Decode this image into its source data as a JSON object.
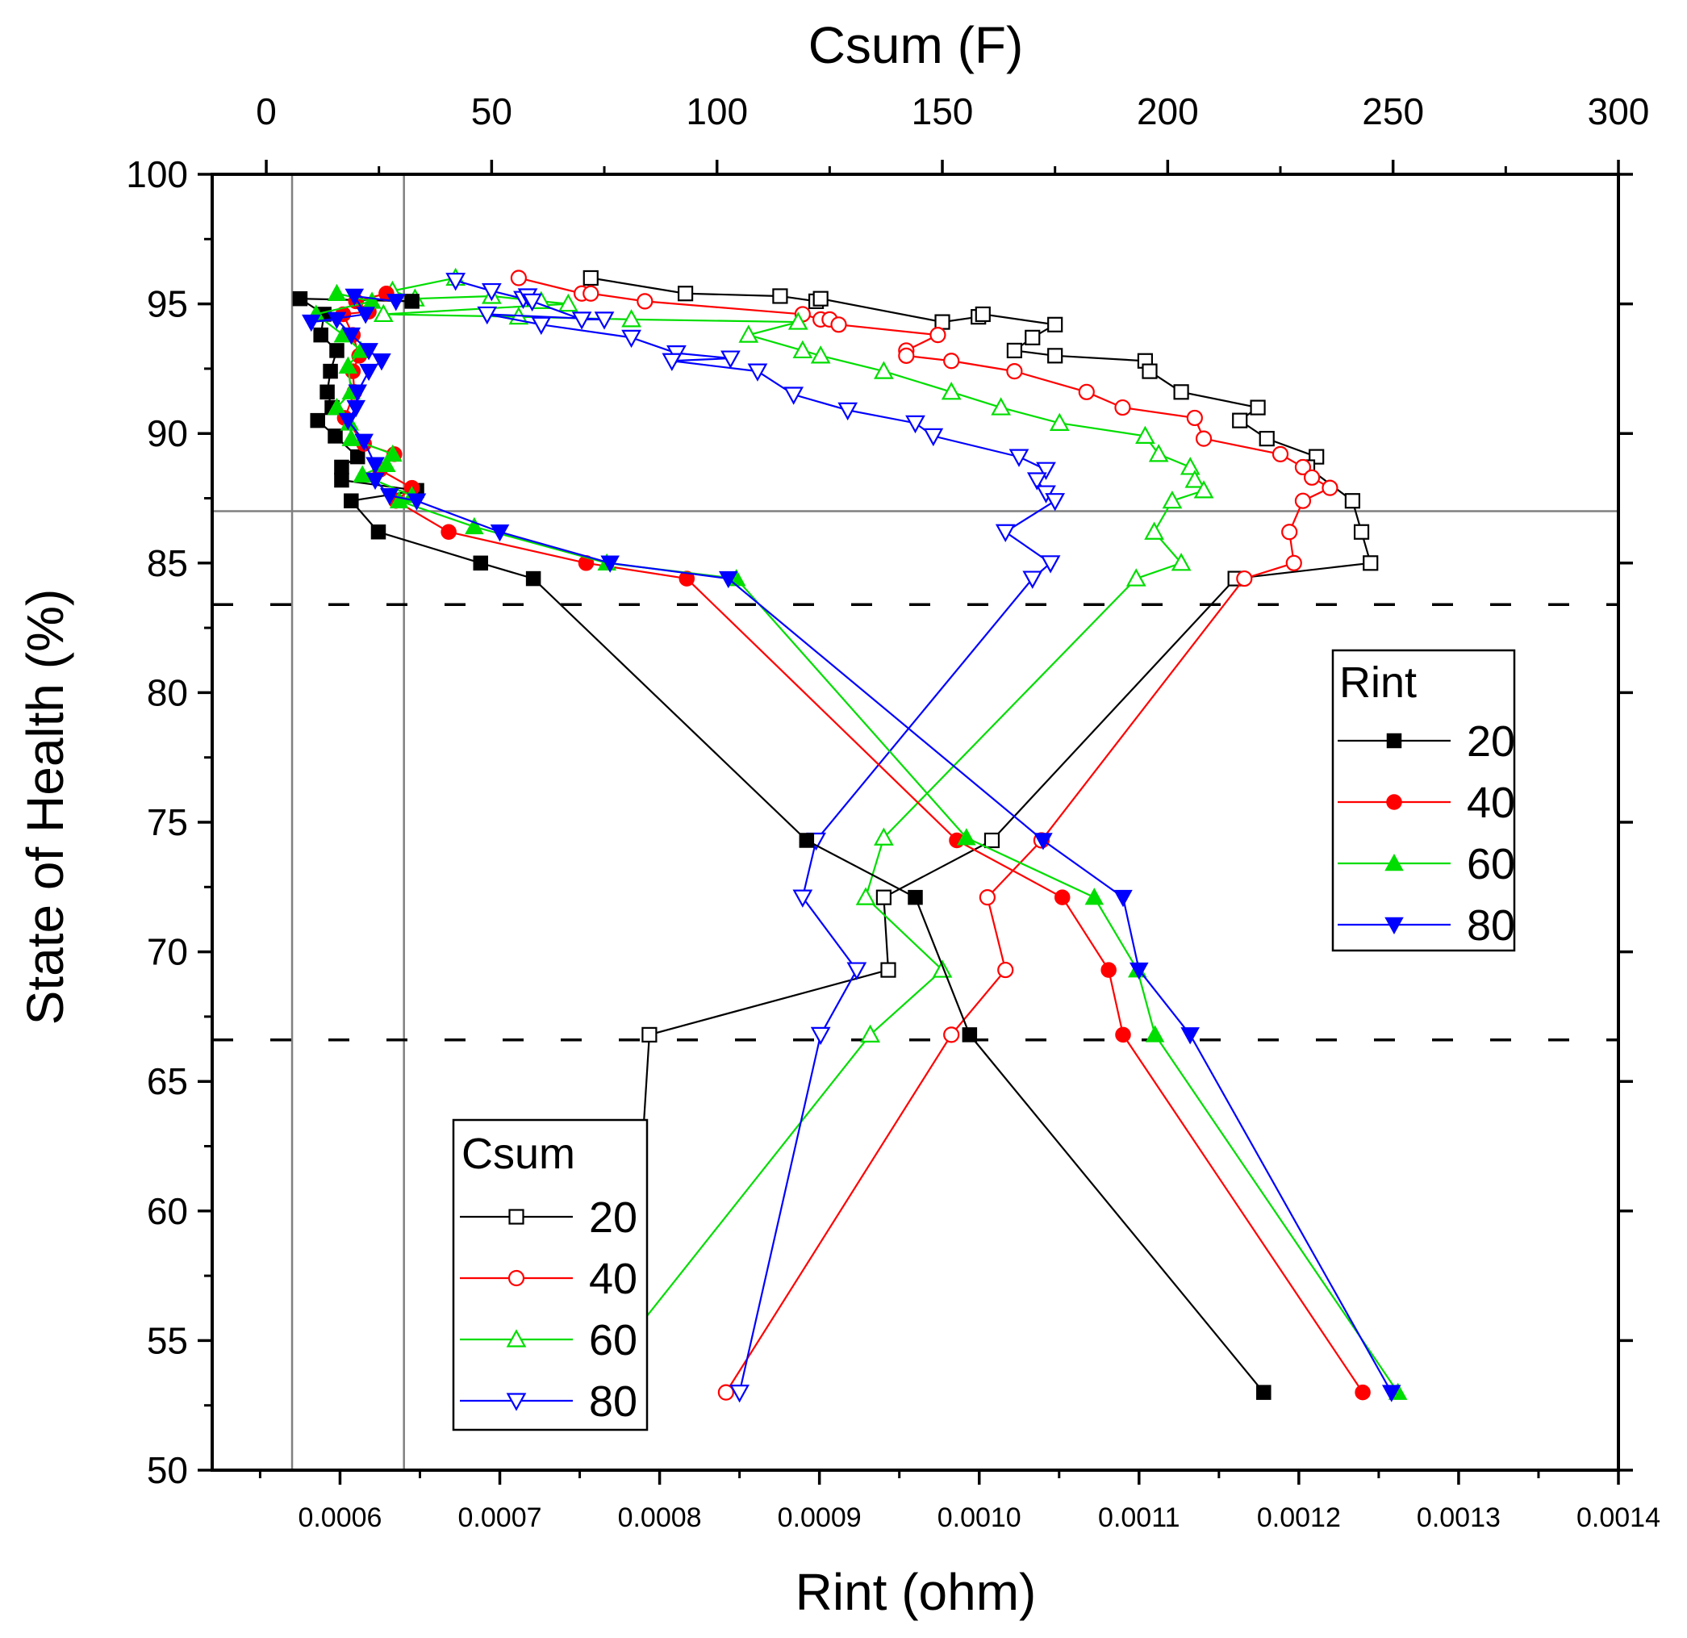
{
  "chart_data": {
    "type": "line",
    "ylabel": "State of Health (%)",
    "ylim": [
      50,
      100
    ],
    "yticks": [
      "50",
      "55",
      "60",
      "65",
      "70",
      "75",
      "80",
      "85",
      "90",
      "95",
      "100"
    ],
    "bottom_axis": {
      "label": "Rint (ohm)",
      "lim": [
        0.00052,
        0.0014
      ],
      "ticks": [
        "0.0006",
        "0.0007",
        "0.0008",
        "0.0009",
        "0.0010",
        "0.0011",
        "0.0012",
        "0.0013",
        "0.0014"
      ]
    },
    "top_axis": {
      "label": "Csum (F)",
      "lim": [
        -12,
        300
      ],
      "ticks": [
        "0",
        "50",
        "100",
        "150",
        "200",
        "250",
        "300"
      ]
    },
    "reference_lines": {
      "solid_horizontal_soh": 87,
      "solid_vertical_rint": [
        0.00057,
        0.00064
      ],
      "dashed_horizontal_soh": [
        83.4,
        66.6
      ]
    },
    "colors": {
      "20": "#000000",
      "40": "#ff0000",
      "60": "#00dd00",
      "80": "#0000ff"
    },
    "legends": {
      "rint": {
        "title": "Rint",
        "position": "right-middle",
        "entries": [
          "20",
          "40",
          "60",
          "80"
        ]
      },
      "csum": {
        "title": "Csum",
        "position": "bottom-left",
        "entries": [
          "20",
          "40",
          "60",
          "80"
        ]
      }
    },
    "rint_series": [
      {
        "name": "20",
        "marker": "square-filled",
        "points": [
          [
            0.000645,
            95.1
          ],
          [
            0.000575,
            95.2
          ],
          [
            0.00059,
            94.6
          ],
          [
            0.000588,
            93.8
          ],
          [
            0.000598,
            93.2
          ],
          [
            0.000594,
            92.4
          ],
          [
            0.000592,
            91.6
          ],
          [
            0.000595,
            91.0
          ],
          [
            0.000586,
            90.5
          ],
          [
            0.000597,
            89.9
          ],
          [
            0.000611,
            89.1
          ],
          [
            0.000601,
            88.7
          ],
          [
            0.000601,
            88.2
          ],
          [
            0.000648,
            87.8
          ],
          [
            0.000607,
            87.4
          ],
          [
            0.000624,
            86.2
          ],
          [
            0.000688,
            85.0
          ],
          [
            0.000721,
            84.4
          ],
          [
            0.000892,
            74.3
          ],
          [
            0.00096,
            72.1
          ],
          [
            0.000994,
            66.8
          ],
          [
            0.001178,
            53.0
          ]
        ]
      },
      {
        "name": "40",
        "marker": "circle-filled",
        "points": [
          [
            0.000629,
            95.4
          ],
          [
            0.00061,
            95.1
          ],
          [
            0.000618,
            94.7
          ],
          [
            0.000602,
            94.6
          ],
          [
            0.000608,
            93.8
          ],
          [
            0.000612,
            93.0
          ],
          [
            0.000608,
            92.4
          ],
          [
            0.000609,
            91.6
          ],
          [
            0.000603,
            90.6
          ],
          [
            0.000615,
            89.6
          ],
          [
            0.000634,
            89.2
          ],
          [
            0.000625,
            88.6
          ],
          [
            0.000645,
            87.9
          ],
          [
            0.000635,
            87.4
          ],
          [
            0.000668,
            86.2
          ],
          [
            0.000754,
            85.0
          ],
          [
            0.000817,
            84.4
          ],
          [
            0.000986,
            74.3
          ],
          [
            0.001052,
            72.1
          ],
          [
            0.001081,
            69.3
          ],
          [
            0.00109,
            66.8
          ],
          [
            0.00124,
            53.0
          ]
        ]
      },
      {
        "name": "60",
        "marker": "triangle-up-filled",
        "points": [
          [
            0.000598,
            95.4
          ],
          [
            0.00062,
            95.1
          ],
          [
            0.000585,
            94.6
          ],
          [
            0.000602,
            93.8
          ],
          [
            0.000613,
            93.2
          ],
          [
            0.000605,
            92.6
          ],
          [
            0.000607,
            91.6
          ],
          [
            0.000598,
            91.0
          ],
          [
            0.000606,
            90.4
          ],
          [
            0.000607,
            89.8
          ],
          [
            0.000633,
            89.2
          ],
          [
            0.000629,
            88.8
          ],
          [
            0.000614,
            88.4
          ],
          [
            0.000645,
            87.6
          ],
          [
            0.000637,
            87.4
          ],
          [
            0.000684,
            86.4
          ],
          [
            0.000767,
            85.0
          ],
          [
            0.000848,
            84.4
          ],
          [
            0.000992,
            74.4
          ],
          [
            0.001072,
            72.1
          ],
          [
            0.001099,
            69.3
          ],
          [
            0.00111,
            66.8
          ],
          [
            0.001262,
            53.0
          ]
        ]
      },
      {
        "name": "80",
        "marker": "triangle-down-filled",
        "points": [
          [
            0.000635,
            95.1
          ],
          [
            0.000609,
            95.3
          ],
          [
            0.000616,
            94.6
          ],
          [
            0.000582,
            94.3
          ],
          [
            0.000598,
            94.4
          ],
          [
            0.000607,
            93.8
          ],
          [
            0.000618,
            93.2
          ],
          [
            0.000626,
            92.8
          ],
          [
            0.000618,
            92.4
          ],
          [
            0.000611,
            91.6
          ],
          [
            0.00061,
            91.0
          ],
          [
            0.000605,
            90.5
          ],
          [
            0.000615,
            89.7
          ],
          [
            0.000622,
            88.8
          ],
          [
            0.000622,
            88.2
          ],
          [
            0.000631,
            87.6
          ],
          [
            0.000648,
            87.4
          ],
          [
            0.0007,
            86.2
          ],
          [
            0.000769,
            85.0
          ],
          [
            0.000843,
            84.4
          ],
          [
            0.00104,
            74.3
          ],
          [
            0.00109,
            72.1
          ],
          [
            0.0011,
            69.3
          ],
          [
            0.001132,
            66.8
          ],
          [
            0.001258,
            53.0
          ]
        ]
      }
    ],
    "csum_series": [
      {
        "name": "20",
        "marker": "square-open",
        "points": [
          [
            72,
            96.0
          ],
          [
            93,
            95.4
          ],
          [
            114,
            95.3
          ],
          [
            122,
            95.1
          ],
          [
            123,
            95.2
          ],
          [
            150,
            94.3
          ],
          [
            158,
            94.5
          ],
          [
            159,
            94.6
          ],
          [
            175,
            94.2
          ],
          [
            170,
            93.7
          ],
          [
            166,
            93.2
          ],
          [
            175,
            93.0
          ],
          [
            195,
            92.8
          ],
          [
            196,
            92.4
          ],
          [
            203,
            91.6
          ],
          [
            220,
            91.0
          ],
          [
            216,
            90.5
          ],
          [
            222,
            89.8
          ],
          [
            233,
            89.1
          ],
          [
            231,
            88.7
          ],
          [
            241,
            87.4
          ],
          [
            243,
            86.2
          ],
          [
            245,
            85.0
          ],
          [
            215,
            84.4
          ],
          [
            161,
            74.3
          ],
          [
            137,
            72.1
          ],
          [
            138,
            69.3
          ],
          [
            85,
            66.8
          ],
          [
            80,
            53.0
          ]
        ]
      },
      {
        "name": "40",
        "marker": "circle-open",
        "points": [
          [
            56,
            96.0
          ],
          [
            70,
            95.4
          ],
          [
            72,
            95.4
          ],
          [
            84,
            95.1
          ],
          [
            119,
            94.6
          ],
          [
            123,
            94.4
          ],
          [
            125,
            94.4
          ],
          [
            127,
            94.2
          ],
          [
            149,
            93.8
          ],
          [
            142,
            93.2
          ],
          [
            142,
            93.0
          ],
          [
            152,
            92.8
          ],
          [
            166,
            92.4
          ],
          [
            182,
            91.6
          ],
          [
            190,
            91.0
          ],
          [
            206,
            90.6
          ],
          [
            208,
            89.8
          ],
          [
            225,
            89.2
          ],
          [
            230,
            88.7
          ],
          [
            232,
            88.3
          ],
          [
            236,
            87.9
          ],
          [
            230,
            87.4
          ],
          [
            227,
            86.2
          ],
          [
            228,
            85.0
          ],
          [
            217,
            84.4
          ],
          [
            172,
            74.3
          ],
          [
            160,
            72.1
          ],
          [
            164,
            69.3
          ],
          [
            152,
            66.8
          ],
          [
            102,
            53.0
          ]
        ]
      },
      {
        "name": "60",
        "marker": "triangle-up-open",
        "points": [
          [
            42,
            96.0
          ],
          [
            28,
            95.5
          ],
          [
            33,
            95.2
          ],
          [
            50,
            95.3
          ],
          [
            61,
            95.1
          ],
          [
            67,
            95.0
          ],
          [
            26,
            94.6
          ],
          [
            56,
            94.5
          ],
          [
            81,
            94.4
          ],
          [
            118,
            94.3
          ],
          [
            107,
            93.8
          ],
          [
            119,
            93.2
          ],
          [
            123,
            93.0
          ],
          [
            137,
            92.4
          ],
          [
            152,
            91.6
          ],
          [
            163,
            91.0
          ],
          [
            176,
            90.4
          ],
          [
            195,
            89.9
          ],
          [
            198,
            89.2
          ],
          [
            205,
            88.7
          ],
          [
            206,
            88.2
          ],
          [
            208,
            87.8
          ],
          [
            201,
            87.4
          ],
          [
            197,
            86.2
          ],
          [
            203,
            85.0
          ],
          [
            193,
            84.4
          ],
          [
            137,
            74.4
          ],
          [
            133,
            72.1
          ],
          [
            150,
            69.3
          ],
          [
            134,
            66.8
          ],
          [
            71,
            53.0
          ]
        ]
      },
      {
        "name": "80",
        "marker": "triangle-down-open",
        "points": [
          [
            42,
            95.9
          ],
          [
            50,
            95.5
          ],
          [
            57,
            95.2
          ],
          [
            58,
            95.3
          ],
          [
            59,
            95.1
          ],
          [
            70,
            94.4
          ],
          [
            75,
            94.4
          ],
          [
            49,
            94.6
          ],
          [
            61,
            94.2
          ],
          [
            81,
            93.7
          ],
          [
            91,
            93.1
          ],
          [
            103,
            92.9
          ],
          [
            90,
            92.8
          ],
          [
            109,
            92.4
          ],
          [
            117,
            91.5
          ],
          [
            129,
            90.9
          ],
          [
            144,
            90.4
          ],
          [
            148,
            89.9
          ],
          [
            167,
            89.1
          ],
          [
            173,
            88.6
          ],
          [
            171,
            88.2
          ],
          [
            173,
            87.7
          ],
          [
            175,
            87.4
          ],
          [
            164,
            86.2
          ],
          [
            174,
            85.0
          ],
          [
            170,
            84.4
          ],
          [
            122,
            74.3
          ],
          [
            119,
            72.1
          ],
          [
            131,
            69.3
          ],
          [
            123,
            66.8
          ],
          [
            105,
            53.0
          ]
        ]
      }
    ]
  }
}
